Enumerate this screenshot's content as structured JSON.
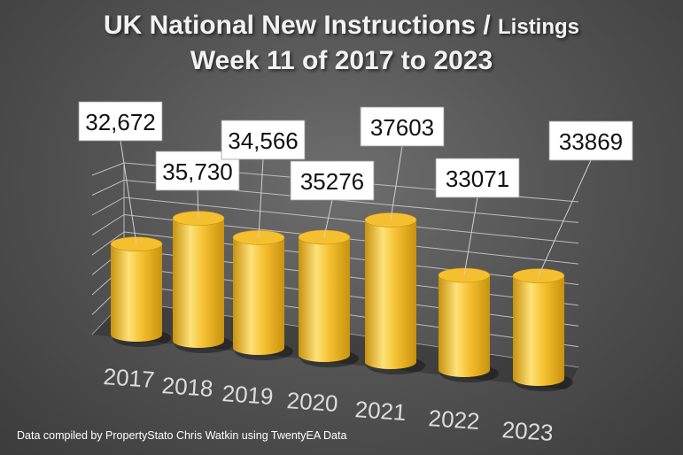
{
  "title": {
    "main": "UK National New Instructions / ",
    "small": "Listings",
    "line2": "Week 11 of 2017 to 2023"
  },
  "footer": "Data compiled by PropertyStato Chris Watkin using TwentyEA Data",
  "colors": {
    "bar": "#f5c030",
    "bar_dark": "#c8920e",
    "bar_light": "#fde27a",
    "label_bg": "#ffffff",
    "background": "#555555"
  },
  "chart_data": {
    "type": "bar",
    "style": "3d-cylinder",
    "categories": [
      "2017",
      "2018",
      "2019",
      "2020",
      "2021",
      "2022",
      "2023"
    ],
    "values": [
      32672,
      35730,
      34566,
      35276,
      37603,
      33071,
      33869
    ],
    "data_labels": [
      "32,672",
      "35,730",
      "34,566",
      "35276",
      "37603",
      "33071",
      "33869"
    ],
    "title": "UK National New Instructions / Listings Week 11 of 2017 to 2023",
    "xlabel": "",
    "ylabel": "",
    "grid": true,
    "legend": "none"
  }
}
